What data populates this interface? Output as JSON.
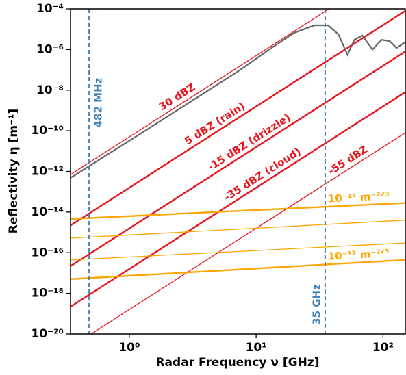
{
  "chart_data": {
    "type": "line",
    "xlabel": "Radar Frequency ν [GHz]",
    "ylabel": "Reflectivity η [m⁻¹]",
    "xscale": "log",
    "yscale": "log",
    "xlim": [
      0.344,
      150
    ],
    "ylim": [
      1e-20,
      0.0001
    ],
    "xticks": [
      {
        "value": 1,
        "label": "10⁰"
      },
      {
        "value": 10,
        "label": "10¹"
      },
      {
        "value": 100,
        "label": "10²"
      }
    ],
    "yticks": [
      {
        "value": 1e-20,
        "label": "10⁻²⁰"
      },
      {
        "value": 1e-18,
        "label": "10⁻¹⁸"
      },
      {
        "value": 1e-16,
        "label": "10⁻¹⁶"
      },
      {
        "value": 1e-14,
        "label": "10⁻¹⁴"
      },
      {
        "value": 1e-12,
        "label": "10⁻¹²"
      },
      {
        "value": 1e-10,
        "label": "10⁻¹⁰"
      },
      {
        "value": 1e-08,
        "label": "10⁻⁸"
      },
      {
        "value": 1e-06,
        "label": "10⁻⁶"
      },
      {
        "value": 0.0001,
        "label": "10⁻⁴"
      }
    ],
    "series": [
      {
        "name": "30 dBZ",
        "color": "#e8141b",
        "linewidth": 1.3,
        "x": [
          0.344,
          37.6
        ],
        "values": [
          7e-13,
          0.0001
        ]
      },
      {
        "name": "5 dBZ (rain)",
        "color": "#e8141b",
        "linewidth": 2.4,
        "x": [
          0.344,
          150
        ],
        "values": [
          2.2e-15,
          8e-05
        ]
      },
      {
        "name": "-15 dBZ (drizzle)",
        "color": "#e8141b",
        "linewidth": 2.4,
        "x": [
          0.344,
          150
        ],
        "values": [
          2.2e-17,
          8e-07
        ]
      },
      {
        "name": "-35 dBZ (cloud)",
        "color": "#e8141b",
        "linewidth": 2.4,
        "x": [
          0.344,
          150
        ],
        "values": [
          2.2e-19,
          8e-09
        ]
      },
      {
        "name": "-55 dBZ",
        "color": "#e8141b",
        "linewidth": 1.3,
        "x": [
          0.5,
          150
        ],
        "values": [
          1e-20,
          8e-11
        ]
      },
      {
        "name": "10⁻¹⁴ m⁻²ᐟ³",
        "color": "#ffa500",
        "linewidth": 2.4,
        "x": [
          0.344,
          150
        ],
        "values": [
          4.6e-15,
          2.8e-14
        ]
      },
      {
        "color": "#ffa500",
        "linewidth": 1.3,
        "x": [
          0.344,
          150
        ],
        "values": [
          5.2e-16,
          4e-15
        ]
      },
      {
        "color": "#ffa500",
        "linewidth": 1.3,
        "x": [
          0.344,
          150
        ],
        "values": [
          4.4e-17,
          3e-16
        ]
      },
      {
        "name": "10⁻¹⁷ m⁻²ᐟ³",
        "color": "#ffa500",
        "linewidth": 2.4,
        "x": [
          0.344,
          150
        ],
        "values": [
          5e-18,
          4.4e-17
        ]
      },
      {
        "color": "#666666",
        "linewidth": 2.2,
        "x": [
          0.344,
          1.146,
          3.97,
          7.37,
          13.7,
          19.9,
          28.8,
          36.9,
          44.5,
          52.5,
          59.4,
          68.8,
          82.6,
          97.5,
          113,
          128,
          148
        ],
        "values": [
          4.8e-13,
          5.5e-11,
          7.8e-09,
          9.3e-08,
          1.4e-06,
          6.6e-06,
          1.55e-05,
          1.55e-05,
          5.6e-06,
          5.5e-07,
          3e-06,
          4.9e-06,
          1e-06,
          3e-06,
          2.6e-06,
          1.2e-06,
          2.2e-06
        ]
      }
    ],
    "vlines": [
      {
        "x": 0.482,
        "label": "482 MHz",
        "color": "#4682b4"
      },
      {
        "x": 35,
        "label": "35 GHz",
        "color": "#4682b4"
      }
    ]
  }
}
